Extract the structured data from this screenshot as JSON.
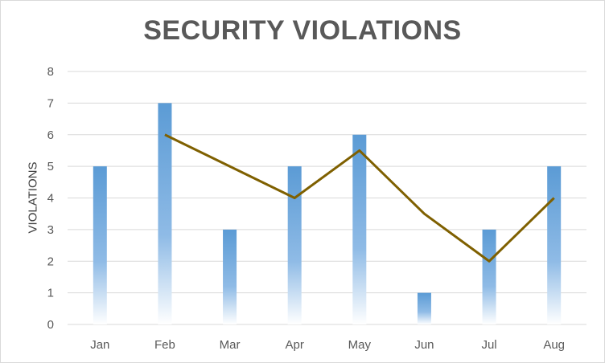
{
  "chart_data": {
    "type": "bar",
    "title": "SECURITY VIOLATIONS",
    "xlabel": "",
    "ylabel": "VIOLATIONS",
    "categories": [
      "Jan",
      "Feb",
      "Mar",
      "Apr",
      "May",
      "Jun",
      "Jul",
      "Aug"
    ],
    "ylim": [
      0,
      8
    ],
    "yticks": [
      "0",
      "1",
      "2",
      "3",
      "4",
      "5",
      "6",
      "7",
      "8"
    ],
    "grid": true,
    "legend": "none",
    "series": [
      {
        "kind": "bar",
        "values": [
          5,
          7,
          3,
          5,
          6,
          1,
          3,
          5
        ],
        "color": "#5b9bd5"
      },
      {
        "kind": "line",
        "values": [
          null,
          6,
          5,
          4,
          5.5,
          3.5,
          2,
          4
        ],
        "color": "#7f6000"
      }
    ]
  }
}
